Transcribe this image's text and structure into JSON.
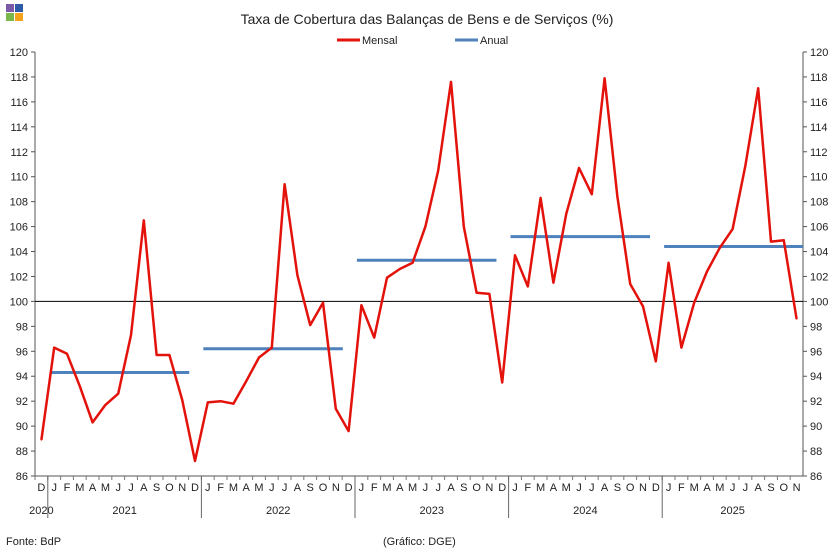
{
  "branding": {
    "logo_colors": [
      "#7b59a6",
      "#2e5aa7",
      "#7ab648",
      "#f5a31b"
    ]
  },
  "footer": {
    "source": "Fonte: BdP",
    "credit": "(Gráfico: DGE)"
  },
  "chart_data": {
    "type": "line",
    "title": "Taxa de Cobertura das Balanças de Bens e de Serviços (%)",
    "ylim": [
      86,
      120
    ],
    "ytick_step": 2,
    "reference_line": 100,
    "x_month_labels": [
      "D",
      "J",
      "F",
      "M",
      "A",
      "M",
      "J",
      "J",
      "A",
      "S",
      "O",
      "N",
      "D",
      "J",
      "F",
      "M",
      "A",
      "M",
      "J",
      "J",
      "A",
      "S",
      "O",
      "N",
      "D",
      "J",
      "F",
      "M",
      "A",
      "M",
      "J",
      "J",
      "A",
      "S",
      "O",
      "N",
      "D",
      "J",
      "F",
      "M",
      "A",
      "M",
      "J",
      "J",
      "A",
      "S",
      "O",
      "N",
      "D",
      "J",
      "F",
      "M",
      "A",
      "M",
      "J",
      "J",
      "A",
      "S",
      "O",
      "N"
    ],
    "x_year_groups": [
      {
        "label": "2020",
        "start": 0,
        "end": 0
      },
      {
        "label": "2021",
        "start": 1,
        "end": 12
      },
      {
        "label": "2022",
        "start": 13,
        "end": 24
      },
      {
        "label": "2023",
        "start": 25,
        "end": 36
      },
      {
        "label": "2024",
        "start": 37,
        "end": 48
      },
      {
        "label": "2025",
        "start": 49,
        "end": 59
      }
    ],
    "series": [
      {
        "name": "Mensal",
        "color": "#e3120b",
        "values": [
          88.9,
          96.3,
          95.8,
          93.2,
          90.3,
          91.7,
          92.6,
          97.3,
          106.5,
          95.7,
          95.7,
          92.1,
          87.2,
          91.9,
          92.0,
          91.8,
          93.6,
          95.5,
          96.3,
          109.4,
          102.1,
          98.1,
          99.9,
          91.4,
          89.6,
          99.7,
          97.1,
          101.9,
          102.6,
          103.1,
          106.0,
          110.5,
          117.6,
          106.0,
          100.7,
          100.6,
          93.5,
          103.7,
          101.2,
          108.3,
          101.5,
          107.0,
          110.7,
          108.6,
          117.9,
          108.4,
          101.4,
          99.6,
          95.2,
          103.1,
          96.3,
          99.9,
          102.4,
          104.3,
          105.8,
          110.9,
          117.1,
          104.8,
          104.9,
          98.6
        ]
      },
      {
        "name": "Anual",
        "color": "#4f81bd",
        "segments": [
          {
            "start": 1,
            "end": 12,
            "value": 94.3
          },
          {
            "start": 13,
            "end": 24,
            "value": 96.2
          },
          {
            "start": 25,
            "end": 36,
            "value": 103.3
          },
          {
            "start": 37,
            "end": 48,
            "value": 105.2
          },
          {
            "start": 49,
            "end": 60,
            "value": 104.4
          }
        ]
      }
    ]
  }
}
